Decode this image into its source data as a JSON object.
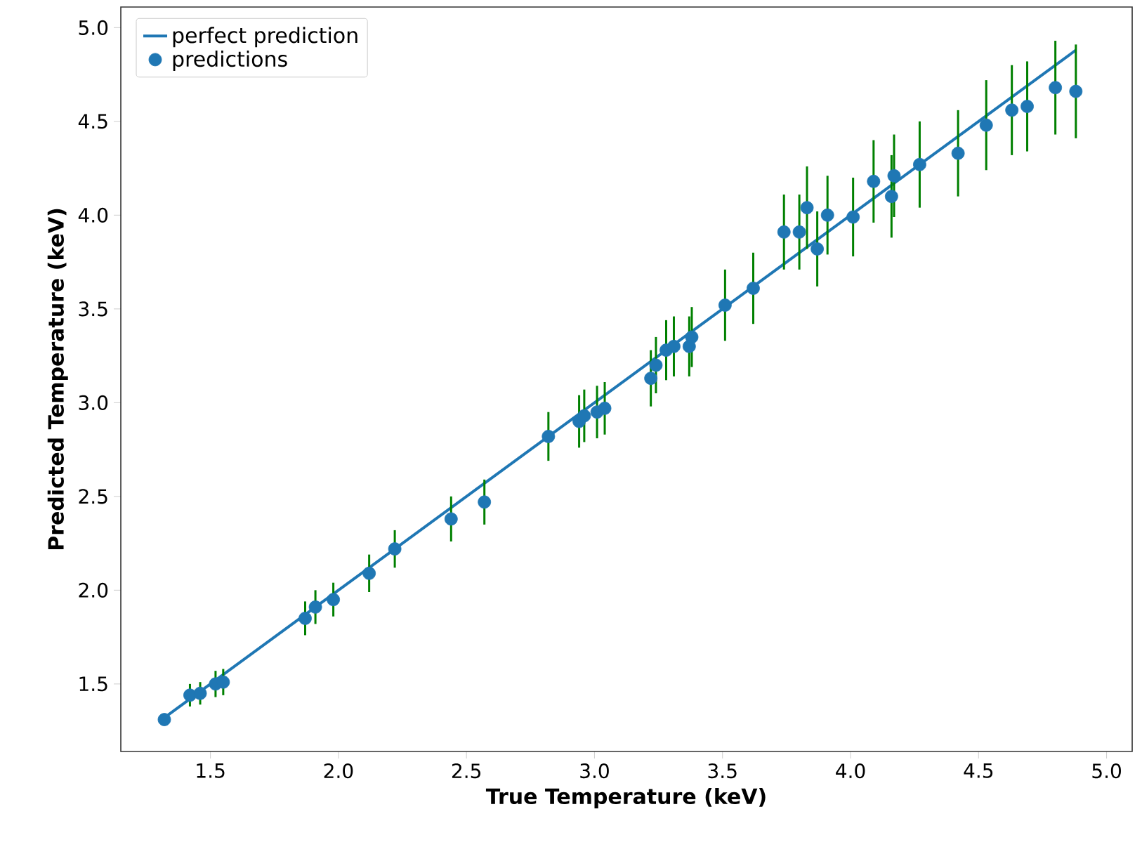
{
  "chart_data": {
    "type": "scatter",
    "xlabel": "**True Temperature (keV)**",
    "ylabel": "**Predicted Temperature (keV)**",
    "xlim": [
      1.15,
      5.1
    ],
    "ylim": [
      1.14,
      5.11
    ],
    "xticks": [
      1.5,
      {
        "value": 2,
        "label": "2.0"
      },
      2.5,
      {
        "value": 3,
        "label": "3.0"
      },
      3.5,
      {
        "value": 4,
        "label": "4.0"
      },
      4.5,
      {
        "value": 5,
        "label": "5.0"
      }
    ],
    "yticks": [
      1.5,
      {
        "value": 2,
        "label": "2.0"
      },
      2.5,
      {
        "value": 3,
        "label": "3.0"
      },
      3.5,
      {
        "value": 4,
        "label": "4.0"
      },
      4.5,
      {
        "value": 5,
        "label": "5.0"
      }
    ],
    "legend": "top left",
    "grid": false,
    "series": [
      {
        "name": "perfect prediction",
        "type": "line",
        "color": "#1f77b4",
        "marker": "none",
        "x": [
          1.32,
          4.88
        ],
        "values": [
          1.32,
          4.88
        ]
      },
      {
        "name": "predictions",
        "color": "#1f77b4",
        "marker": "circle",
        "x": [
          1.32,
          1.42,
          1.46,
          1.52,
          1.55,
          1.87,
          1.91,
          1.98,
          2.12,
          2.22,
          2.44,
          2.57,
          2.82,
          2.94,
          2.96,
          3.01,
          3.04,
          3.22,
          3.24,
          3.28,
          3.31,
          3.37,
          3.38,
          3.51,
          3.62,
          3.74,
          3.8,
          3.83,
          3.87,
          3.91,
          4.01,
          4.09,
          4.16,
          4.17,
          4.27,
          4.42,
          4.53,
          4.63,
          4.69,
          4.8,
          4.88
        ],
        "values": [
          1.31,
          1.44,
          1.45,
          1.5,
          1.51,
          1.85,
          1.91,
          1.95,
          2.09,
          2.22,
          2.38,
          2.47,
          2.82,
          2.9,
          2.93,
          2.95,
          2.97,
          3.13,
          3.2,
          3.28,
          3.3,
          3.3,
          3.35,
          3.52,
          3.61,
          3.91,
          3.91,
          4.04,
          3.82,
          4.0,
          3.99,
          4.18,
          4.1,
          4.21,
          4.27,
          4.33,
          4.48,
          4.56,
          4.58,
          4.68,
          4.66
        ],
        "errors": [
          0.01,
          0.06,
          0.06,
          0.07,
          0.07,
          0.09,
          0.09,
          0.09,
          0.1,
          0.1,
          0.12,
          0.12,
          0.13,
          0.14,
          0.14,
          0.14,
          0.14,
          0.15,
          0.15,
          0.16,
          0.16,
          0.16,
          0.16,
          0.19,
          0.19,
          0.2,
          0.2,
          0.22,
          0.2,
          0.21,
          0.21,
          0.22,
          0.22,
          0.22,
          0.23,
          0.23,
          0.24,
          0.24,
          0.24,
          0.25,
          0.25
        ]
      }
    ]
  }
}
